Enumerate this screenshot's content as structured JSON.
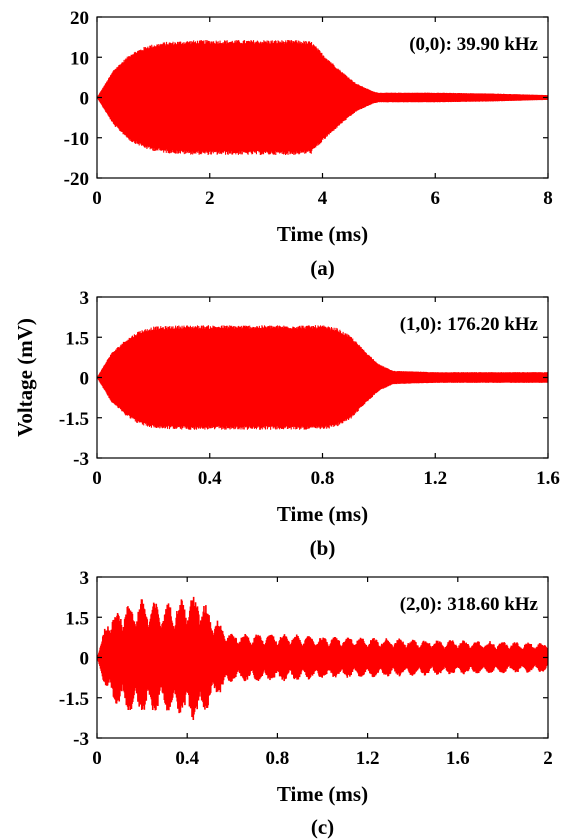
{
  "chart_data": [
    {
      "type": "line",
      "panel_label": "(a)",
      "annotation": "(0,0): 39.90 kHz",
      "xlabel": "Time (ms)",
      "ylabel": "",
      "xlim": [
        0,
        8
      ],
      "ylim": [
        -20,
        20
      ],
      "xticks": [
        "0",
        "2",
        "4",
        "6",
        "8"
      ],
      "yticks": [
        "20",
        "10",
        "0",
        "-10",
        "-20"
      ],
      "color": "#ff0000",
      "series": [
        {
          "x": [
            0,
            0.3,
            0.6,
            0.9,
            1.2,
            1.6,
            2.0,
            2.5,
            3.0,
            3.5,
            3.8,
            4.0,
            4.3,
            4.6,
            4.9,
            5.0,
            6.0,
            7.0,
            8.0
          ],
          "envelope": [
            0,
            7,
            11,
            13,
            13.8,
            14.2,
            14.3,
            14.3,
            14.3,
            14.3,
            14,
            11,
            7,
            3.5,
            1.5,
            1.2,
            1.2,
            1.0,
            0.6
          ]
        }
      ]
    },
    {
      "type": "line",
      "panel_label": "(b)",
      "annotation": "(1,0): 176.20 kHz",
      "xlabel": "Time (ms)",
      "ylabel": "Voltage (mV)",
      "xlim": [
        0,
        1.6
      ],
      "ylim": [
        -3,
        3
      ],
      "xticks": [
        "0",
        "0.4",
        "0.8",
        "1.2",
        "1.6"
      ],
      "yticks": [
        "3",
        "1.5",
        "0",
        "-1.5",
        "-3"
      ],
      "color": "#ff0000",
      "series": [
        {
          "x": [
            0,
            0.05,
            0.1,
            0.15,
            0.2,
            0.3,
            0.4,
            0.5,
            0.6,
            0.7,
            0.8,
            0.85,
            0.9,
            0.95,
            1.0,
            1.05,
            1.2,
            1.4,
            1.6
          ],
          "envelope": [
            0,
            0.9,
            1.4,
            1.75,
            1.9,
            1.95,
            1.95,
            1.95,
            1.95,
            1.95,
            1.95,
            1.85,
            1.55,
            1.0,
            0.5,
            0.25,
            0.2,
            0.2,
            0.2
          ]
        }
      ]
    },
    {
      "type": "line",
      "panel_label": "(c)",
      "annotation": "(2,0): 318.60 kHz",
      "xlabel": "Time (ms)",
      "ylabel": "",
      "xlim": [
        0,
        2
      ],
      "ylim": [
        -3,
        3
      ],
      "xticks": [
        "0",
        "0.4",
        "0.8",
        "1.2",
        "1.6",
        "2"
      ],
      "yticks": [
        "3",
        "1.5",
        "0",
        "-1.5",
        "-3"
      ],
      "color": "#ff0000",
      "series": [
        {
          "x": [
            0,
            0.05,
            0.1,
            0.2,
            0.3,
            0.4,
            0.45,
            0.5,
            0.55,
            0.6,
            0.8,
            1.0,
            1.2,
            1.4,
            1.6,
            1.8,
            2.0
          ],
          "envelope": [
            0,
            1.6,
            1.9,
            2.2,
            2.0,
            2.3,
            2.4,
            1.8,
            1.3,
            0.9,
            0.9,
            0.8,
            0.75,
            0.7,
            0.65,
            0.6,
            0.55
          ]
        }
      ]
    }
  ]
}
